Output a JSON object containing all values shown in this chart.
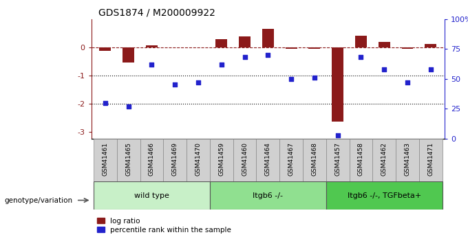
{
  "title": "GDS1874 / M200009922",
  "samples": [
    "GSM41461",
    "GSM41465",
    "GSM41466",
    "GSM41469",
    "GSM41470",
    "GSM41459",
    "GSM41460",
    "GSM41464",
    "GSM41467",
    "GSM41468",
    "GSM41457",
    "GSM41458",
    "GSM41462",
    "GSM41463",
    "GSM41471"
  ],
  "log_ratio": [
    -0.12,
    -0.55,
    0.07,
    -0.02,
    -0.02,
    0.28,
    0.38,
    0.65,
    -0.05,
    -0.07,
    -2.65,
    0.4,
    0.18,
    -0.07,
    0.12
  ],
  "percentile_rank": [
    30,
    27,
    62,
    45,
    47,
    62,
    68,
    70,
    50,
    51,
    3,
    68,
    58,
    47,
    58
  ],
  "groups": [
    {
      "label": "wild type",
      "start": 0,
      "end": 5,
      "color": "#c8f0c8"
    },
    {
      "label": "Itgb6 -/-",
      "start": 5,
      "end": 10,
      "color": "#90e090"
    },
    {
      "label": "Itgb6 -/-, TGFbeta+",
      "start": 10,
      "end": 15,
      "color": "#50c850"
    }
  ],
  "bar_color_red": "#8b1a1a",
  "bar_color_blue": "#2222cc",
  "yticks_left": [
    0,
    -1,
    -2,
    -3
  ],
  "yticks_right": [
    0,
    25,
    50,
    75,
    100
  ],
  "ylim_left": [
    -3.25,
    1.0
  ],
  "background_color": "#ffffff",
  "legend_red": "log ratio",
  "legend_blue": "percentile rank within the sample",
  "genotype_label": "genotype/variation"
}
